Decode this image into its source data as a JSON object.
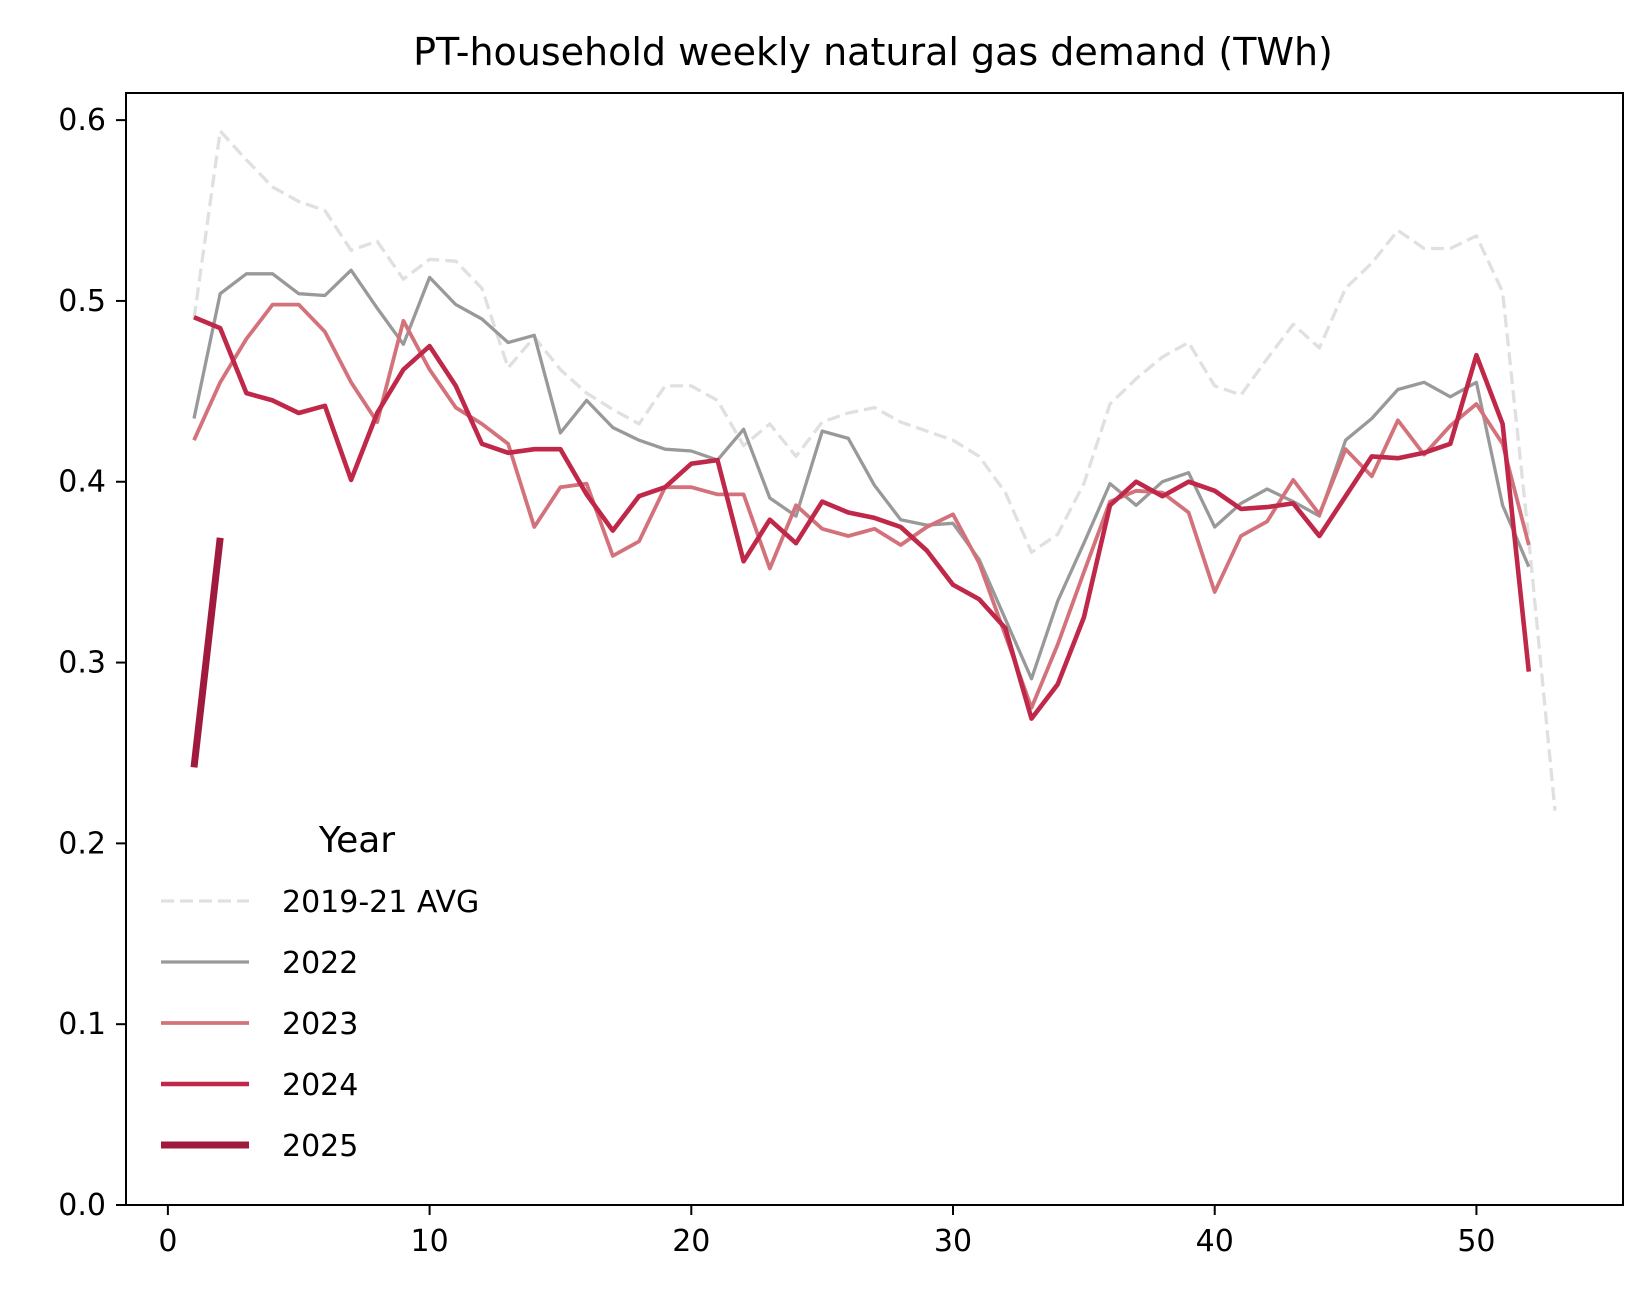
{
  "chart_data": {
    "type": "line",
    "title": "PT-household weekly natural gas demand (TWh)",
    "xlabel": "",
    "ylabel": "",
    "xlim": [
      -1.6,
      55.6
    ],
    "ylim": [
      0.0,
      0.615
    ],
    "xticks": [
      0,
      10,
      20,
      30,
      40,
      50
    ],
    "yticks": [
      0.0,
      0.1,
      0.2,
      0.3,
      0.4,
      0.5,
      0.6
    ],
    "xtick_labels": [
      "0",
      "10",
      "20",
      "30",
      "40",
      "50"
    ],
    "ytick_labels": [
      "0.0",
      "0.1",
      "0.2",
      "0.3",
      "0.4",
      "0.5",
      "0.6"
    ],
    "grid": false,
    "legend": {
      "title": "Year",
      "placement": "lower-left"
    },
    "series": [
      {
        "name": "2019-21 AVG",
        "color": "#e0e0e0",
        "dashed": true,
        "x": [
          1,
          2,
          3,
          4,
          5,
          6,
          7,
          8,
          9,
          10,
          11,
          12,
          13,
          14,
          15,
          16,
          17,
          18,
          19,
          20,
          21,
          22,
          23,
          24,
          25,
          26,
          27,
          28,
          29,
          30,
          31,
          32,
          33,
          34,
          35,
          36,
          37,
          38,
          39,
          40,
          41,
          42,
          43,
          44,
          45,
          46,
          47,
          48,
          49,
          50,
          51,
          52,
          53
        ],
        "values": [
          0.49,
          0.594,
          0.578,
          0.563,
          0.555,
          0.55,
          0.528,
          0.533,
          0.512,
          0.523,
          0.522,
          0.507,
          0.463,
          0.48,
          0.462,
          0.449,
          0.44,
          0.432,
          0.453,
          0.453,
          0.445,
          0.42,
          0.432,
          0.414,
          0.433,
          0.438,
          0.441,
          0.433,
          0.428,
          0.423,
          0.414,
          0.394,
          0.361,
          0.371,
          0.399,
          0.443,
          0.457,
          0.469,
          0.477,
          0.453,
          0.448,
          0.468,
          0.487,
          0.474,
          0.507,
          0.521,
          0.539,
          0.529,
          0.529,
          0.536,
          0.505,
          0.368,
          0.218
        ]
      },
      {
        "name": "2022",
        "color": "#999999",
        "width": 3.3,
        "x": [
          1,
          2,
          3,
          4,
          5,
          6,
          7,
          8,
          9,
          10,
          11,
          12,
          13,
          14,
          15,
          16,
          17,
          18,
          19,
          20,
          21,
          22,
          23,
          24,
          25,
          26,
          27,
          28,
          29,
          30,
          31,
          32,
          33,
          34,
          35,
          36,
          37,
          38,
          39,
          40,
          41,
          42,
          43,
          44,
          45,
          46,
          47,
          48,
          49,
          50,
          51,
          52
        ],
        "values": [
          0.435,
          0.504,
          0.515,
          0.515,
          0.504,
          0.503,
          0.517,
          0.496,
          0.476,
          0.513,
          0.498,
          0.49,
          0.477,
          0.481,
          0.427,
          0.445,
          0.43,
          0.423,
          0.418,
          0.417,
          0.412,
          0.429,
          0.391,
          0.381,
          0.428,
          0.424,
          0.398,
          0.379,
          0.376,
          0.377,
          0.357,
          0.324,
          0.291,
          0.334,
          0.366,
          0.399,
          0.387,
          0.4,
          0.405,
          0.375,
          0.388,
          0.396,
          0.389,
          0.381,
          0.423,
          0.435,
          0.451,
          0.455,
          0.447,
          0.455,
          0.387,
          0.353
        ]
      },
      {
        "name": "2023",
        "color": "#d4727b",
        "width": 3.8,
        "x": [
          1,
          2,
          3,
          4,
          5,
          6,
          7,
          8,
          9,
          10,
          11,
          12,
          13,
          14,
          15,
          16,
          17,
          18,
          19,
          20,
          21,
          22,
          23,
          24,
          25,
          26,
          27,
          28,
          29,
          30,
          31,
          32,
          33,
          34,
          35,
          36,
          37,
          38,
          39,
          40,
          41,
          42,
          43,
          44,
          45,
          46,
          47,
          48,
          49,
          50,
          51,
          52
        ],
        "values": [
          0.423,
          0.455,
          0.479,
          0.498,
          0.498,
          0.483,
          0.455,
          0.433,
          0.489,
          0.462,
          0.441,
          0.432,
          0.421,
          0.375,
          0.397,
          0.399,
          0.359,
          0.367,
          0.397,
          0.397,
          0.393,
          0.393,
          0.352,
          0.387,
          0.374,
          0.37,
          0.374,
          0.365,
          0.375,
          0.382,
          0.355,
          0.315,
          0.275,
          0.31,
          0.35,
          0.389,
          0.395,
          0.394,
          0.383,
          0.339,
          0.37,
          0.378,
          0.401,
          0.382,
          0.418,
          0.403,
          0.434,
          0.415,
          0.431,
          0.443,
          0.421,
          0.365
        ]
      },
      {
        "name": "2024",
        "color": "#c0284a",
        "width": 4.6,
        "x": [
          1,
          2,
          3,
          4,
          5,
          6,
          7,
          8,
          9,
          10,
          11,
          12,
          13,
          14,
          15,
          16,
          17,
          18,
          19,
          20,
          21,
          22,
          23,
          24,
          25,
          26,
          27,
          28,
          29,
          30,
          31,
          32,
          33,
          34,
          35,
          36,
          37,
          38,
          39,
          40,
          41,
          42,
          43,
          44,
          45,
          46,
          47,
          48,
          49,
          50,
          51,
          52
        ],
        "values": [
          0.491,
          0.485,
          0.449,
          0.445,
          0.438,
          0.442,
          0.401,
          0.438,
          0.462,
          0.475,
          0.453,
          0.421,
          0.416,
          0.418,
          0.418,
          0.393,
          0.373,
          0.392,
          0.397,
          0.41,
          0.412,
          0.356,
          0.379,
          0.366,
          0.389,
          0.383,
          0.38,
          0.375,
          0.362,
          0.343,
          0.335,
          0.319,
          0.269,
          0.288,
          0.325,
          0.387,
          0.4,
          0.392,
          0.4,
          0.395,
          0.385,
          0.386,
          0.388,
          0.37,
          0.392,
          0.414,
          0.413,
          0.416,
          0.421,
          0.47,
          0.432,
          0.295
        ]
      },
      {
        "name": "2025",
        "color": "#a01a3e",
        "width": 7,
        "x": [
          1,
          2
        ],
        "values": [
          0.242,
          0.369
        ]
      }
    ]
  }
}
